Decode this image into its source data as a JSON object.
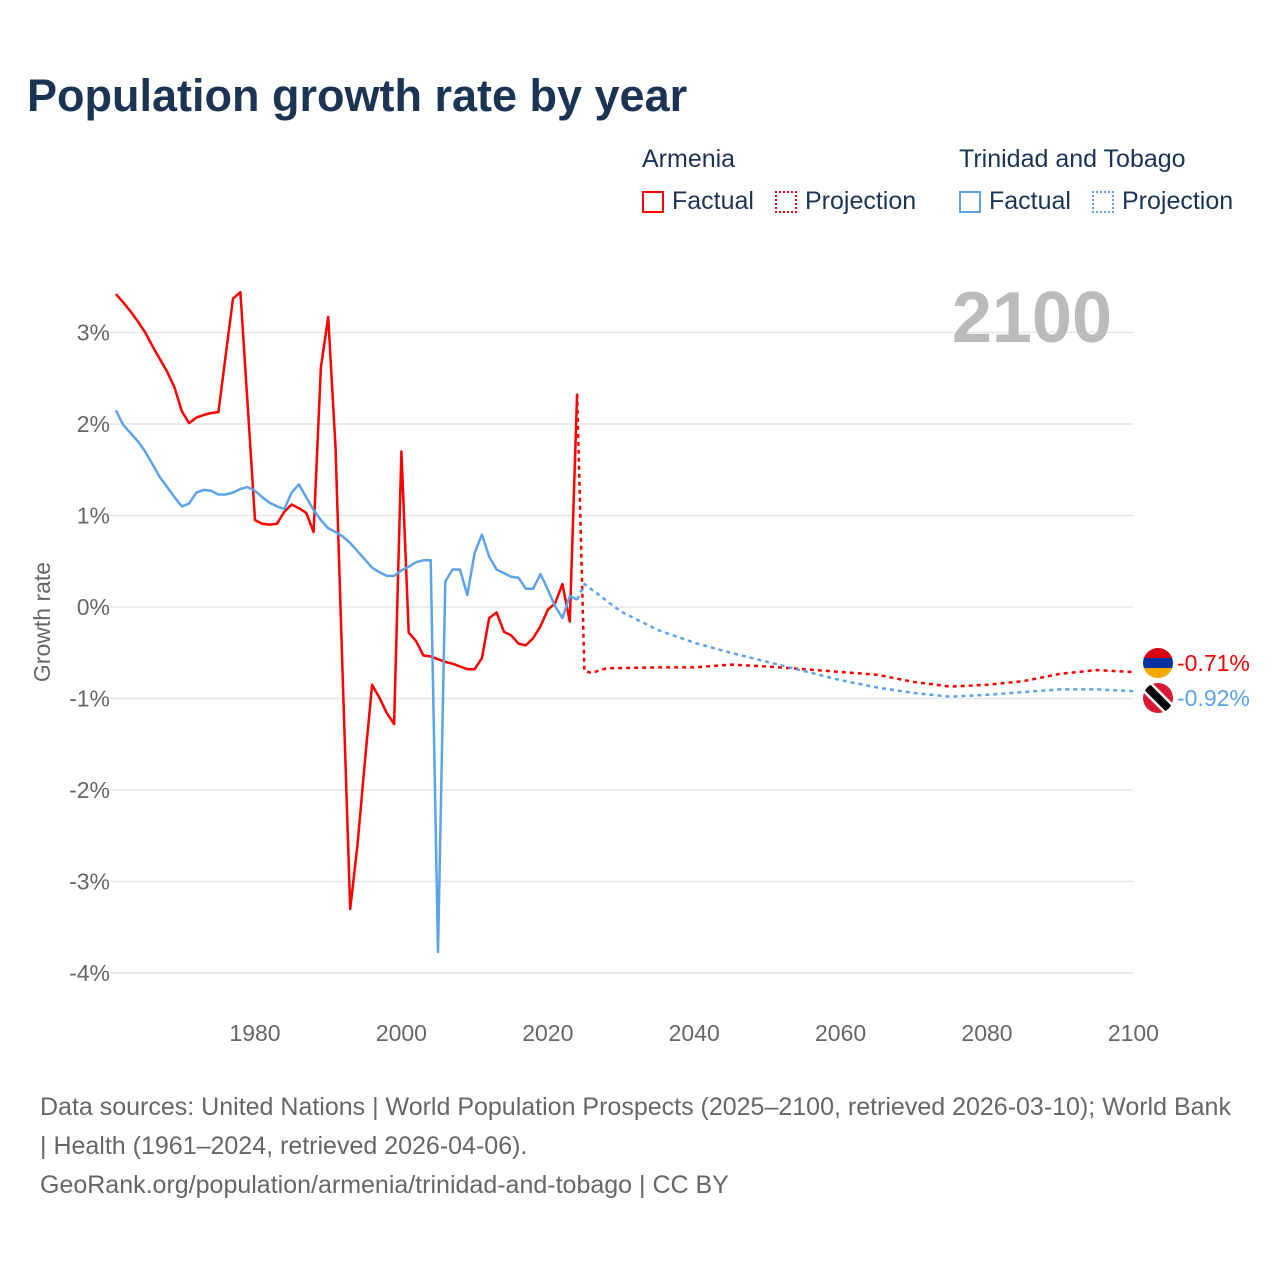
{
  "title": "Population growth rate by year",
  "legend": {
    "groups": [
      {
        "name": "Armenia",
        "color": "#ff0000",
        "factual": "Factual",
        "projection": "Projection"
      },
      {
        "name": "Trinidad and Tobago",
        "color": "#5ba3ea",
        "factual": "Factual",
        "projection": "Projection"
      }
    ]
  },
  "year_display": "2100",
  "end_labels": {
    "armenia": "-0.71%",
    "trinidad": "-0.92%"
  },
  "source": {
    "line1": "Data sources: United Nations | World Population Prospects (2025–2100, retrieved 2026-03-10); World Bank | Health (1961–2024, retrieved 2026-04-06).",
    "line2": "GeoRank.org/population/armenia/trinidad-and-tobago | CC BY"
  },
  "chart_data": {
    "type": "line",
    "title": "Population growth rate by year",
    "xlabel": "",
    "ylabel": "Growth rate",
    "xlim": [
      1961,
      2100
    ],
    "ylim": [
      -4,
      3.5
    ],
    "xticks": [
      1980,
      2000,
      2020,
      2040,
      2060,
      2080,
      2100
    ],
    "yticks": [
      3,
      2,
      1,
      0,
      -1,
      -2,
      -3,
      -4
    ],
    "ytick_labels": [
      "3%",
      "2%",
      "1%",
      "0%",
      "-1%",
      "-2%",
      "-3%",
      "-4%"
    ],
    "xtick_labels": [
      "1980",
      "2000",
      "2020",
      "2040",
      "2060",
      "2080",
      "2100"
    ],
    "grid": true,
    "series": [
      {
        "name": "Armenia Factual",
        "color": "#ff0000",
        "dashed": false,
        "start_year": 1961,
        "values": [
          3.42,
          3.33,
          3.23,
          3.12,
          3.0,
          2.85,
          2.71,
          2.57,
          2.4,
          2.14,
          2.01,
          2.07,
          2.1,
          2.12,
          2.13,
          2.75,
          3.37,
          3.44,
          2.2,
          0.95,
          0.91,
          0.9,
          0.91,
          1.04,
          1.12,
          1.08,
          1.03,
          0.82,
          2.62,
          3.17,
          1.75,
          -0.8,
          -3.3,
          -2.6,
          -1.7,
          -0.85,
          -0.99,
          -1.16,
          -1.28,
          1.7,
          -0.28,
          -0.37,
          -0.53,
          -0.54,
          -0.57,
          -0.6,
          -0.62,
          -0.65,
          -0.68,
          -0.68,
          -0.56,
          -0.12,
          -0.06,
          -0.27,
          -0.31,
          -0.4,
          -0.42,
          -0.34,
          -0.21,
          -0.03,
          0.04,
          0.25,
          -0.16,
          2.33
        ]
      },
      {
        "name": "Armenia Projection",
        "color": "#ff0000",
        "dashed": true,
        "points": [
          [
            2024,
            2.33
          ],
          [
            2025,
            -0.7
          ],
          [
            2026,
            -0.72
          ],
          [
            2028,
            -0.67
          ],
          [
            2035,
            -0.66
          ],
          [
            2040,
            -0.66
          ],
          [
            2045,
            -0.63
          ],
          [
            2050,
            -0.65
          ],
          [
            2055,
            -0.68
          ],
          [
            2060,
            -0.71
          ],
          [
            2065,
            -0.74
          ],
          [
            2070,
            -0.82
          ],
          [
            2075,
            -0.87
          ],
          [
            2080,
            -0.85
          ],
          [
            2085,
            -0.81
          ],
          [
            2090,
            -0.73
          ],
          [
            2095,
            -0.69
          ],
          [
            2100,
            -0.71
          ]
        ]
      },
      {
        "name": "Trinidad and Tobago Factual",
        "color": "#5ba3ea",
        "dashed": false,
        "start_year": 1961,
        "values": [
          2.15,
          1.99,
          1.9,
          1.81,
          1.7,
          1.56,
          1.42,
          1.31,
          1.2,
          1.1,
          1.13,
          1.25,
          1.28,
          1.27,
          1.23,
          1.23,
          1.25,
          1.29,
          1.31,
          1.27,
          1.2,
          1.14,
          1.1,
          1.07,
          1.25,
          1.34,
          1.2,
          1.06,
          0.95,
          0.86,
          0.82,
          0.77,
          0.7,
          0.61,
          0.52,
          0.43,
          0.38,
          0.34,
          0.34,
          0.4,
          0.44,
          0.49,
          0.51,
          0.51,
          -3.77,
          0.28,
          0.41,
          0.41,
          0.13,
          0.59,
          0.79,
          0.55,
          0.41,
          0.37,
          0.33,
          0.32,
          0.2,
          0.2,
          0.36,
          0.19,
          0.01,
          -0.12,
          0.12,
          0.08
        ]
      },
      {
        "name": "Trinidad and Tobago Projection",
        "color": "#5ba3ea",
        "dashed": true,
        "points": [
          [
            2024,
            0.08
          ],
          [
            2025,
            0.25
          ],
          [
            2030,
            -0.05
          ],
          [
            2035,
            -0.25
          ],
          [
            2040,
            -0.39
          ],
          [
            2045,
            -0.5
          ],
          [
            2050,
            -0.6
          ],
          [
            2055,
            -0.7
          ],
          [
            2060,
            -0.8
          ],
          [
            2065,
            -0.88
          ],
          [
            2070,
            -0.94
          ],
          [
            2075,
            -0.98
          ],
          [
            2080,
            -0.96
          ],
          [
            2085,
            -0.93
          ],
          [
            2090,
            -0.9
          ],
          [
            2095,
            -0.9
          ],
          [
            2100,
            -0.92
          ]
        ]
      }
    ]
  }
}
